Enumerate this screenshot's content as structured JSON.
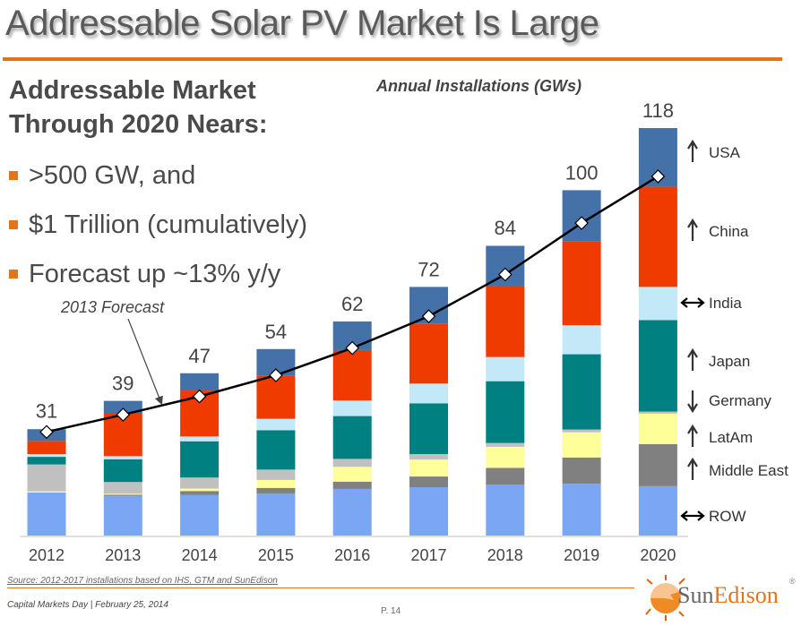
{
  "slide": {
    "title": "Addressable Solar PV Market Is Large",
    "headline_line1": "Addressable Market",
    "headline_line2": "Through 2020 Nears:",
    "bullets": [
      ">500 GW, and",
      "$1 Trillion (cumulatively)",
      "Forecast up ~13% y/y"
    ],
    "source": "Source: 2012-2017 installations based on IHS, GTM and SunEdison",
    "footer": "Capital Markets Day | February 25, 2014",
    "page": "P. 14",
    "logo": {
      "prefix": "Sun",
      "suffix": "Edison",
      "reg": "®"
    },
    "accent_color": "#e57317"
  },
  "chart_data": {
    "type": "bar",
    "stacked": true,
    "title": "Annual Installations (GWs)",
    "xlabel": "",
    "ylabel": "",
    "ylim": [
      0,
      120
    ],
    "grid": false,
    "categories": [
      "2012",
      "2013",
      "2014",
      "2015",
      "2016",
      "2017",
      "2018",
      "2019",
      "2020"
    ],
    "totals": [
      31,
      39,
      47,
      54,
      62,
      72,
      84,
      100,
      118
    ],
    "series": [
      {
        "name": "ROW",
        "color": "#7aa6f4",
        "trend": "flat",
        "values": [
          12.5,
          11.5,
          11.8,
          12.2,
          13.5,
          14,
          14.7,
          15,
          14.3
        ]
      },
      {
        "name": "Middle East",
        "color": "#808080",
        "trend": "up",
        "values": [
          0,
          0.3,
          1.1,
          1.6,
          2.1,
          3.1,
          4.9,
          7.6,
          12.2
        ]
      },
      {
        "name": "LatAm",
        "color": "#ffff99",
        "trend": "up",
        "values": [
          0.3,
          0.3,
          0.7,
          2.3,
          4.3,
          4.9,
          6.1,
          7.3,
          8.8
        ]
      },
      {
        "name": "Germany",
        "color": "#c0c0c0",
        "trend": "down",
        "values": [
          7.8,
          3.4,
          3.2,
          3,
          2.3,
          1.6,
          1.1,
          0.8,
          0.6
        ]
      },
      {
        "name": "Japan",
        "color": "#008080",
        "trend": "up",
        "values": [
          2.2,
          6.6,
          10.5,
          11.4,
          12.4,
          14.7,
          17.9,
          21.8,
          26.5
        ]
      },
      {
        "name": "India",
        "color": "#c3e8f7",
        "trend": "flat",
        "values": [
          0.8,
          0.9,
          1.4,
          3.3,
          4.5,
          5.7,
          7,
          8.4,
          9.6
        ]
      },
      {
        "name": "China",
        "color": "#ef3a00",
        "trend": "up",
        "values": [
          3.8,
          12.4,
          13.3,
          12.4,
          14.6,
          17.4,
          20.4,
          24.2,
          29
        ]
      },
      {
        "name": "USA",
        "color": "#4472a8",
        "trend": "up",
        "values": [
          3.4,
          3.6,
          5,
          7.8,
          8.3,
          10.6,
          11.8,
          14.9,
          17
        ]
      }
    ],
    "line_series": {
      "name": "2013 Forecast",
      "color": "#000000",
      "values": [
        30,
        35,
        40.3,
        46.4,
        54.3,
        63.5,
        75.6,
        90.5,
        104
      ]
    },
    "annotation": "2013 Forecast",
    "legend_placement": "right",
    "trend_legend": [
      {
        "label": "USA",
        "trend": "up"
      },
      {
        "label": "China",
        "trend": "up"
      },
      {
        "label": "India",
        "trend": "flat"
      },
      {
        "label": "Japan",
        "trend": "up"
      },
      {
        "label": "Germany",
        "trend": "down"
      },
      {
        "label": "LatAm",
        "trend": "up"
      },
      {
        "label": "Middle East",
        "trend": "up"
      },
      {
        "label": "ROW",
        "trend": "flat"
      }
    ]
  }
}
